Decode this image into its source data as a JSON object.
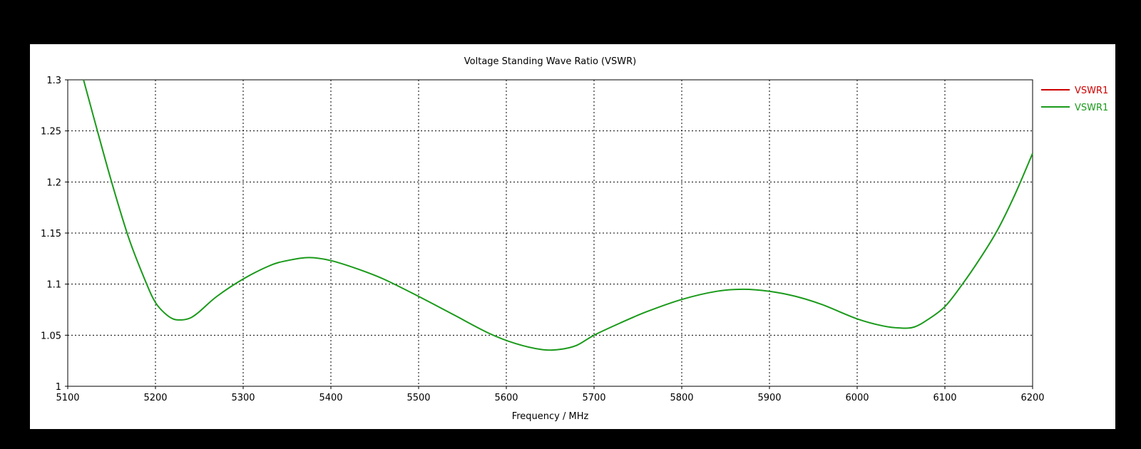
{
  "chart_data": {
    "type": "line",
    "title": "Voltage Standing Wave Ratio (VSWR)",
    "xlabel": "Frequency / MHz",
    "ylabel": "",
    "xlim": [
      5100,
      6200
    ],
    "ylim": [
      1,
      1.3
    ],
    "xticks": [
      "5100",
      "5200",
      "5300",
      "5400",
      "5500",
      "5600",
      "5700",
      "5800",
      "5900",
      "6000",
      "6100",
      "6200"
    ],
    "yticks": [
      "1",
      "1.05",
      "1.1",
      "1.15",
      "1.2",
      "1.25",
      "1.3"
    ],
    "grid": true,
    "legend_position": "right",
    "series": [
      {
        "name": "VSWR1",
        "color": "#cc0000",
        "x": [],
        "y": []
      },
      {
        "name": "VSWR1",
        "color": "#1a9a1a",
        "x": [
          5118,
          5130,
          5150,
          5170,
          5190,
          5200,
          5210,
          5220,
          5230,
          5240,
          5250,
          5270,
          5300,
          5330,
          5350,
          5375,
          5400,
          5430,
          5460,
          5500,
          5540,
          5580,
          5610,
          5640,
          5660,
          5680,
          5700,
          5730,
          5760,
          5800,
          5840,
          5870,
          5900,
          5930,
          5960,
          6000,
          6030,
          6050,
          6065,
          6080,
          6100,
          6120,
          6140,
          6160,
          6180,
          6200
        ],
        "y": [
          1.3,
          1.262,
          1.2,
          1.144,
          1.1,
          1.082,
          1.072,
          1.066,
          1.065,
          1.067,
          1.073,
          1.088,
          1.105,
          1.118,
          1.123,
          1.126,
          1.123,
          1.115,
          1.105,
          1.088,
          1.07,
          1.052,
          1.042,
          1.036,
          1.036,
          1.04,
          1.05,
          1.062,
          1.073,
          1.085,
          1.093,
          1.095,
          1.093,
          1.088,
          1.08,
          1.066,
          1.059,
          1.057,
          1.058,
          1.065,
          1.078,
          1.1,
          1.125,
          1.153,
          1.188,
          1.228
        ]
      }
    ]
  }
}
